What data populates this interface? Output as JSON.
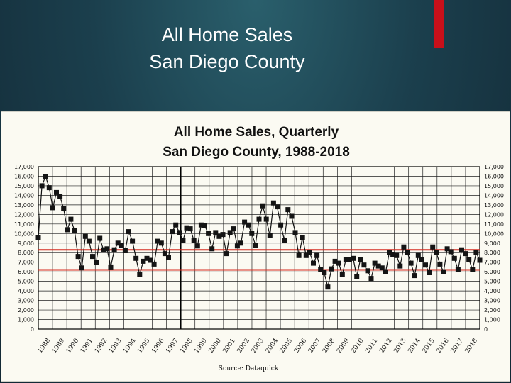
{
  "slide": {
    "title_line1": "All Home Sales",
    "title_line2": "San Diego County"
  },
  "colors": {
    "accent": "#c8101a",
    "reference_line": "#d42a1e",
    "marker": "#141414",
    "background": "#1b3f4d"
  },
  "chart_data": {
    "type": "line",
    "title": "All Home Sales, Quarterly",
    "subtitle": "San Diego County, 1988-2018",
    "source": "Source:  Dataquick",
    "grid": true,
    "ylim": [
      0,
      17000
    ],
    "yticks": [
      "0",
      "1,000",
      "2,000",
      "3,000",
      "4,000",
      "5,000",
      "6,000",
      "7,000",
      "8,000",
      "9,000",
      "10,000",
      "11,000",
      "12,000",
      "13,000",
      "14,000",
      "15,000",
      "16,000",
      "17,000"
    ],
    "xticks": [
      "1988",
      "1989",
      "1990",
      "1991",
      "1992",
      "1993",
      "1994",
      "1995",
      "1996",
      "1997",
      "1998",
      "1999",
      "2000",
      "2001",
      "2002",
      "2003",
      "2004",
      "2005",
      "2006",
      "2007",
      "2008",
      "2009",
      "2010",
      "2011",
      "2012",
      "2013",
      "2014",
      "2015",
      "2016",
      "2017",
      "2018"
    ],
    "reference_lines": [
      8300,
      6200
    ],
    "vertical_marker_year": "1998",
    "series": [
      {
        "values": [
          9600,
          15000,
          16000,
          14800,
          12700,
          14300,
          13900,
          12600,
          10400,
          11500,
          10300,
          7600,
          6400,
          9700,
          9200,
          7600,
          7000,
          9500,
          8300,
          8400,
          6500,
          8300,
          9000,
          8800,
          8200,
          10200,
          9200,
          7400,
          5700,
          7100,
          7400,
          7200,
          6800,
          9200,
          9000,
          7900,
          7500,
          10200,
          10900,
          10100,
          9300,
          10600,
          10500,
          9300,
          8700,
          10900,
          10800,
          10000,
          8400,
          10100,
          9700,
          9900,
          7900,
          10100,
          10500,
          8700,
          9000,
          11200,
          10900,
          10000,
          8800,
          11500,
          12900,
          11500,
          9800,
          13200,
          12800,
          10900,
          9300,
          12500,
          11800,
          10100,
          7700,
          9600,
          7700,
          8000,
          6900,
          7700,
          6200,
          5900,
          4400,
          6300,
          7100,
          6900,
          5700,
          7300,
          7300,
          7400,
          5500,
          7300,
          6700,
          6100,
          5300,
          6900,
          6600,
          6400,
          6000,
          8000,
          7800,
          7700,
          6600,
          8600,
          8000,
          6900,
          5600,
          7700,
          7300,
          6700,
          5900,
          8600,
          8000,
          6800,
          6000,
          8400,
          8100,
          7400,
          6200,
          8300,
          7900,
          7300,
          6200,
          8000,
          7200
        ]
      }
    ]
  }
}
